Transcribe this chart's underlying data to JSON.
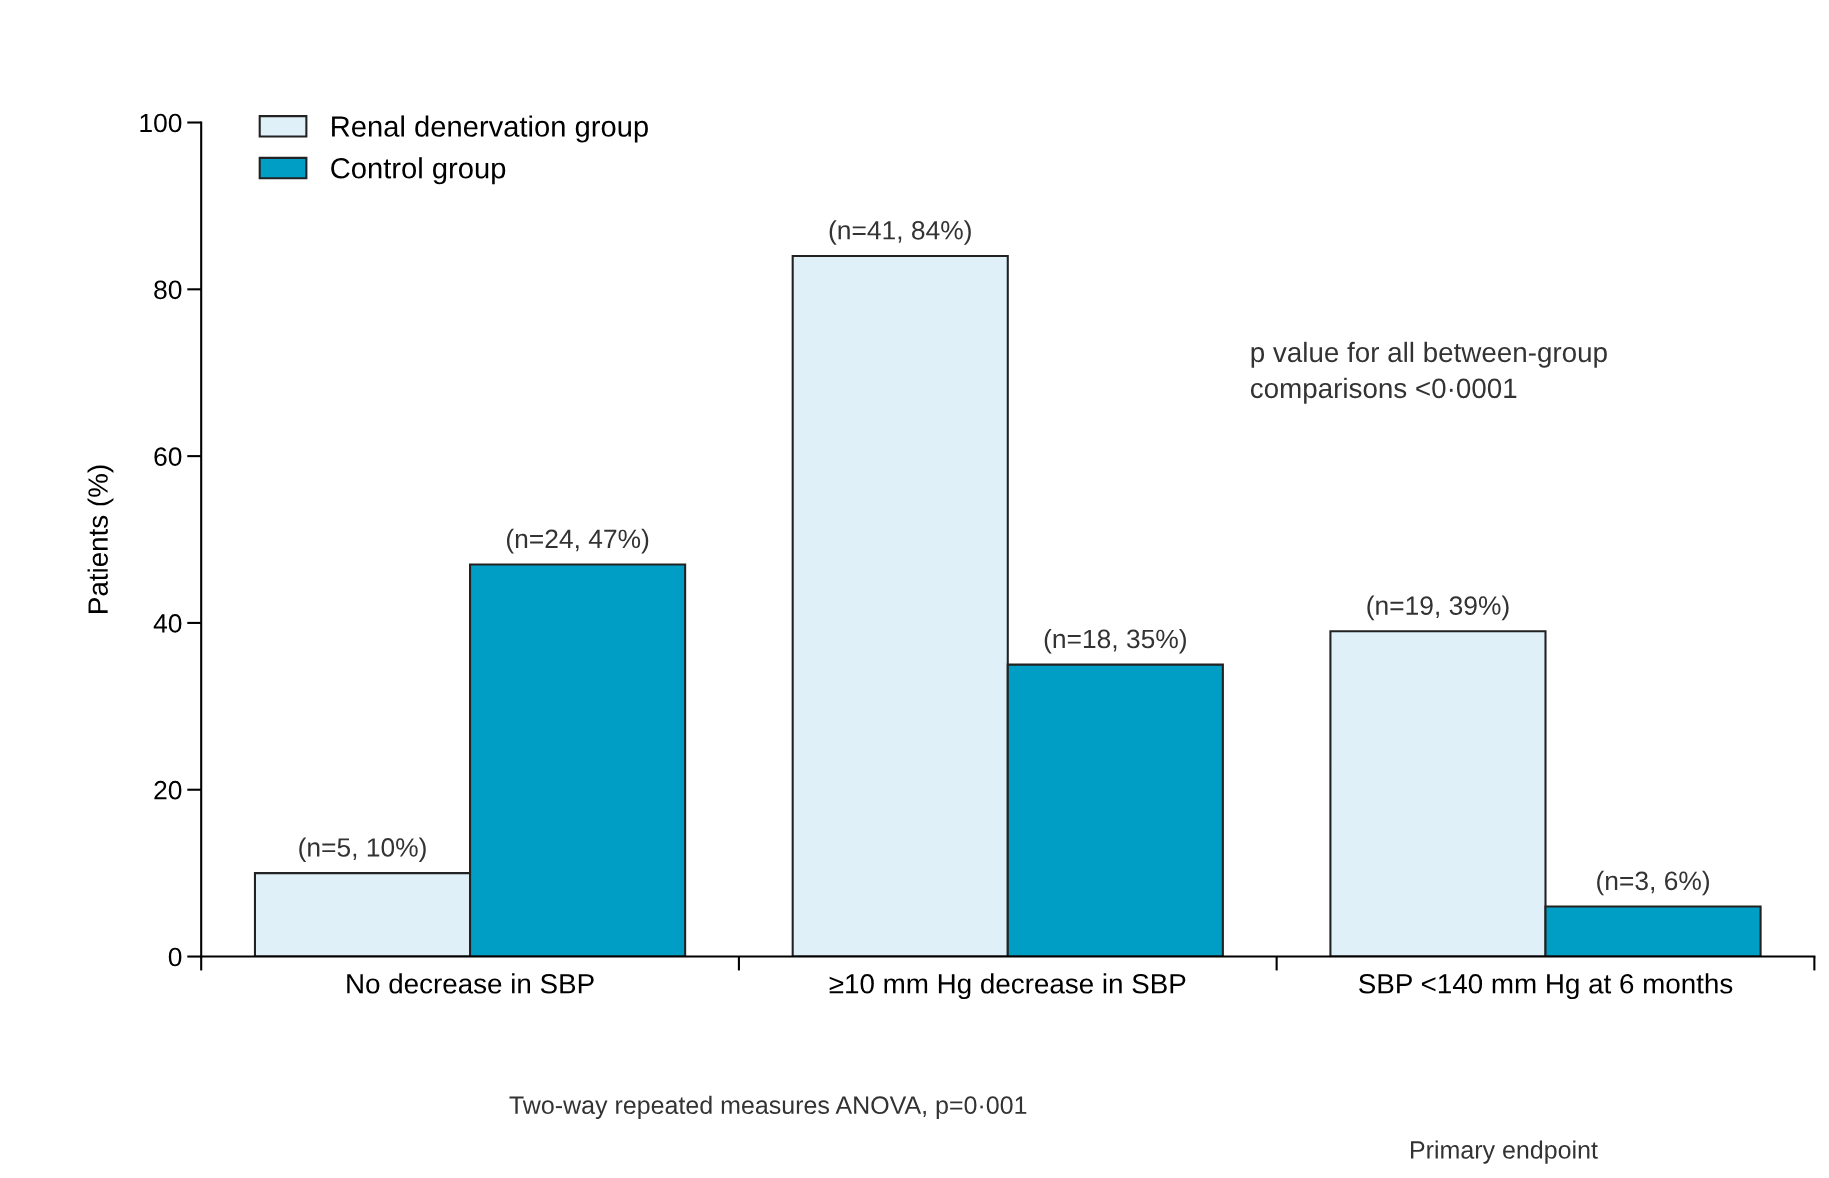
{
  "chart_data": {
    "type": "bar",
    "ylabel": "Patients (%)",
    "categories": [
      "No decrease in SBP",
      "≥10 mm Hg decrease in SBP",
      "SBP <140 mm Hg at 6 months"
    ],
    "series": [
      {
        "name": "Renal denervation group",
        "color": "#dff0f8",
        "values": [
          10,
          84,
          39
        ],
        "value_labels": [
          "(n=5, 10%)",
          "(n=41, 84%)",
          "(n=19, 39%)"
        ]
      },
      {
        "name": "Control group",
        "color": "#009ec4",
        "values": [
          47,
          35,
          6
        ],
        "value_labels": [
          "(n=24, 47%)",
          "(n=18, 35%)",
          "(n=3, 6%)"
        ]
      }
    ],
    "ylim": [
      0,
      100
    ],
    "yticks": [
      0,
      20,
      40,
      60,
      80,
      100
    ],
    "grid": false,
    "legend": "top left",
    "annotations": [
      "p value for all between-group\ncomparisons <0·0001",
      "Two-way repeated measures ANOVA, p=0·001",
      "Primary endpoint"
    ]
  }
}
